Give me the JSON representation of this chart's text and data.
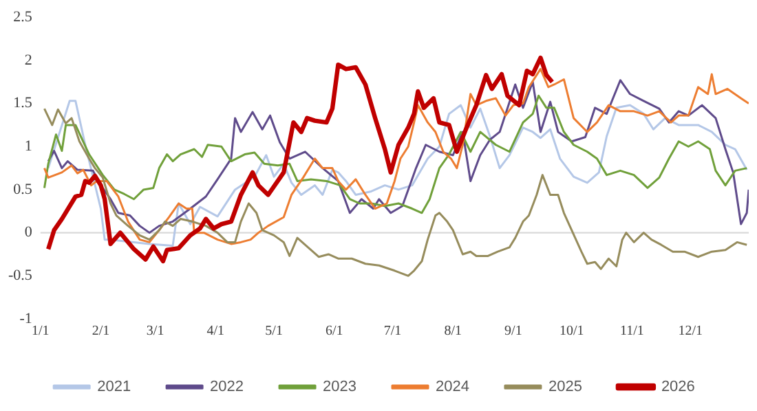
{
  "chart_data": {
    "type": "line",
    "xlim": [
      "--01-01",
      "--12-31"
    ],
    "xticks": [
      {
        "value": "--01-01",
        "label": "1/1"
      },
      {
        "value": "--02-01",
        "label": "2/1"
      },
      {
        "value": "--03-01",
        "label": "3/1"
      },
      {
        "value": "--04-01",
        "label": "4/1"
      },
      {
        "value": "--05-01",
        "label": "5/1"
      },
      {
        "value": "--06-01",
        "label": "6/1"
      },
      {
        "value": "--07-01",
        "label": "7/1"
      },
      {
        "value": "--08-01",
        "label": "8/1"
      },
      {
        "value": "--09-01",
        "label": "9/1"
      },
      {
        "value": "--10-01",
        "label": "10/1"
      },
      {
        "value": "--11-01",
        "label": "11/1"
      },
      {
        "value": "--12-01",
        "label": "12/1"
      }
    ],
    "ylim": [
      -1,
      2.5
    ],
    "yticks": [
      -1,
      -0.5,
      0,
      0.5,
      1,
      1.5,
      2,
      2.5
    ],
    "grid": false,
    "legend": "bottom",
    "marker": "none",
    "line_style": "solid",
    "ref_lines": [
      {
        "axis": "y",
        "value": 0,
        "color": "#d9d9d9"
      }
    ],
    "series": [
      {
        "name": "2021",
        "color": "#b4c7e7",
        "x": [
          "--01-05",
          "--01-16",
          "--01-19",
          "--01-24",
          "--02-01",
          "--02-03",
          "--02-06",
          "--02-26",
          "--03-10",
          "--03-13",
          "--03-19",
          "--03-24",
          "--04-02",
          "--04-11",
          "--04-21",
          "--04-27",
          "--05-01",
          "--05-06",
          "--05-10",
          "--05-15",
          "--05-22",
          "--05-26",
          "--05-31",
          "--06-03",
          "--06-07",
          "--06-12",
          "--06-20",
          "--06-27",
          "--07-04",
          "--07-11",
          "--07-19",
          "--07-25",
          "--07-30",
          "--08-05",
          "--08-10",
          "--08-15",
          "--08-20",
          "--08-25",
          "--08-30",
          "--09-06",
          "--09-11",
          "--09-15",
          "--09-20",
          "--09-25",
          "--10-02",
          "--10-09",
          "--10-15",
          "--10-19",
          "--10-24",
          "--10-31",
          "--11-07",
          "--11-12",
          "--11-18",
          "--11-25",
          "--12-05",
          "--12-12",
          "--12-19",
          "--12-24",
          "--12-30"
        ],
        "values": [
          0.75,
          1.53,
          1.53,
          1.02,
          0.28,
          -0.08,
          -0.08,
          -0.13,
          -0.15,
          0.34,
          0.1,
          0.3,
          0.19,
          0.5,
          0.65,
          0.9,
          0.65,
          0.8,
          0.58,
          0.44,
          0.55,
          0.44,
          0.73,
          0.7,
          0.6,
          0.44,
          0.48,
          0.55,
          0.5,
          0.55,
          0.86,
          1.0,
          1.38,
          1.48,
          1.22,
          1.44,
          1.12,
          0.75,
          0.9,
          1.22,
          1.17,
          1.1,
          1.2,
          0.86,
          0.65,
          0.58,
          0.7,
          1.12,
          1.45,
          1.48,
          1.38,
          1.2,
          1.33,
          1.25,
          1.25,
          1.17,
          1.02,
          0.97,
          0.73
        ]
      },
      {
        "name": "2022",
        "color": "#5f4b8b",
        "x": [
          "--01-05",
          "--01-08",
          "--01-12",
          "--01-15",
          "--01-20",
          "--01-28",
          "--02-01",
          "--02-06",
          "--02-10",
          "--02-16",
          "--02-21",
          "--02-26",
          "--03-03",
          "--03-10",
          "--03-19",
          "--03-27",
          "--04-02",
          "--04-09",
          "--04-11",
          "--04-14",
          "--04-20",
          "--04-25",
          "--04-29",
          "--05-04",
          "--05-09",
          "--05-17",
          "--05-26",
          "--06-03",
          "--06-09",
          "--06-15",
          "--06-21",
          "--06-24",
          "--06-30",
          "--07-06",
          "--07-13",
          "--07-18",
          "--07-25",
          "--08-01",
          "--08-06",
          "--08-10",
          "--08-15",
          "--08-20",
          "--08-25",
          "--09-02",
          "--09-06",
          "--09-11",
          "--09-15",
          "--09-20",
          "--09-24",
          "--10-01",
          "--10-08",
          "--10-13",
          "--10-19",
          "--10-26",
          "--10-31",
          "--11-07",
          "--11-15",
          "--11-20",
          "--11-25",
          "--11-30",
          "--12-07",
          "--12-14",
          "--12-19",
          "--12-23",
          "--12-27",
          "--12-30",
          "--12-31"
        ],
        "values": [
          0.83,
          0.95,
          0.75,
          0.83,
          0.73,
          0.72,
          0.55,
          0.39,
          0.23,
          0.2,
          0.08,
          0.0,
          0.08,
          0.13,
          0.28,
          0.42,
          0.62,
          0.86,
          1.33,
          1.17,
          1.4,
          1.2,
          1.36,
          1.05,
          0.86,
          0.94,
          0.75,
          0.6,
          0.23,
          0.39,
          0.28,
          0.39,
          0.23,
          0.31,
          0.75,
          1.02,
          0.94,
          0.9,
          1.17,
          0.6,
          0.9,
          1.08,
          1.17,
          1.72,
          1.45,
          1.75,
          1.17,
          1.52,
          1.17,
          1.06,
          1.11,
          1.45,
          1.38,
          1.77,
          1.61,
          1.53,
          1.44,
          1.28,
          1.41,
          1.36,
          1.48,
          1.33,
          0.97,
          0.7,
          0.1,
          0.23,
          0.5
        ]
      },
      {
        "name": "2023",
        "color": "#70a03a",
        "x": [
          "--01-03",
          "--01-05",
          "--01-09",
          "--01-12",
          "--01-14",
          "--01-19",
          "--01-26",
          "--02-02",
          "--02-08",
          "--02-13",
          "--02-18",
          "--02-23",
          "--02-28",
          "--03-03",
          "--03-07",
          "--03-10",
          "--03-14",
          "--03-21",
          "--03-25",
          "--03-28",
          "--04-04",
          "--04-09",
          "--04-16",
          "--04-21",
          "--04-26",
          "--05-03",
          "--05-09",
          "--05-13",
          "--05-20",
          "--05-28",
          "--06-04",
          "--06-09",
          "--06-14",
          "--06-20",
          "--06-27",
          "--07-04",
          "--07-11",
          "--07-16",
          "--07-20",
          "--07-25",
          "--07-30",
          "--08-05",
          "--08-10",
          "--08-15",
          "--08-23",
          "--08-30",
          "--09-06",
          "--09-11",
          "--09-14",
          "--09-18",
          "--09-22",
          "--09-27",
          "--10-02",
          "--10-09",
          "--10-14",
          "--10-19",
          "--10-26",
          "--11-02",
          "--11-09",
          "--11-15",
          "--11-20",
          "--11-25",
          "--11-30",
          "--12-05",
          "--12-11",
          "--12-14",
          "--12-19",
          "--12-24",
          "--12-30"
        ],
        "values": [
          0.52,
          0.8,
          1.14,
          0.95,
          1.25,
          1.25,
          0.91,
          0.67,
          0.5,
          0.45,
          0.39,
          0.5,
          0.52,
          0.75,
          0.91,
          0.83,
          0.91,
          0.97,
          0.88,
          1.02,
          1.0,
          0.83,
          0.91,
          0.93,
          0.8,
          0.78,
          0.8,
          0.6,
          0.62,
          0.6,
          0.55,
          0.39,
          0.34,
          0.34,
          0.31,
          0.34,
          0.28,
          0.23,
          0.39,
          0.75,
          0.91,
          1.17,
          0.94,
          1.17,
          1.02,
          0.94,
          1.28,
          1.38,
          1.59,
          1.45,
          1.45,
          1.17,
          1.02,
          0.94,
          0.86,
          0.67,
          0.72,
          0.67,
          0.52,
          0.64,
          0.86,
          1.06,
          1.0,
          1.06,
          0.97,
          0.72,
          0.55,
          0.72,
          0.75
        ]
      },
      {
        "name": "2024",
        "color": "#ed7d31",
        "x": [
          "--01-03",
          "--01-05",
          "--01-12",
          "--01-17",
          "--01-20",
          "--01-23",
          "--01-27",
          "--01-30",
          "--02-04",
          "--02-10",
          "--02-15",
          "--02-21",
          "--02-26",
          "--03-03",
          "--03-08",
          "--03-13",
          "--03-17",
          "--03-20",
          "--03-21",
          "--03-26",
          "--04-02",
          "--04-09",
          "--04-14",
          "--04-19",
          "--04-23",
          "--04-28",
          "--05-06",
          "--05-10",
          "--05-16",
          "--05-22",
          "--05-26",
          "--05-31",
          "--06-03",
          "--06-07",
          "--06-12",
          "--06-17",
          "--06-22",
          "--06-28",
          "--07-02",
          "--07-05",
          "--07-09",
          "--07-12",
          "--07-14",
          "--07-19",
          "--07-23",
          "--07-27",
          "--07-31",
          "--08-03",
          "--08-06",
          "--08-10",
          "--08-13",
          "--08-18",
          "--08-23",
          "--08-28",
          "--09-01",
          "--09-06",
          "--09-09",
          "--09-15",
          "--09-19",
          "--09-22",
          "--09-27",
          "--10-02",
          "--10-09",
          "--10-14",
          "--10-20",
          "--10-26",
          "--11-02",
          "--11-09",
          "--11-15",
          "--11-21",
          "--11-25",
          "--11-30",
          "--12-05",
          "--12-10",
          "--12-12",
          "--12-14",
          "--12-20",
          "--12-27",
          "--12-31"
        ],
        "values": [
          0.75,
          0.64,
          0.7,
          0.78,
          0.69,
          0.73,
          0.55,
          0.6,
          0.6,
          0.42,
          0.13,
          -0.08,
          -0.11,
          0.03,
          0.18,
          0.34,
          0.28,
          0.28,
          0.0,
          0.0,
          -0.08,
          -0.13,
          -0.11,
          -0.08,
          0.0,
          0.08,
          0.18,
          0.44,
          0.64,
          0.86,
          0.75,
          0.75,
          0.6,
          0.5,
          0.62,
          0.44,
          0.28,
          0.34,
          0.6,
          0.86,
          1.0,
          1.28,
          1.48,
          1.28,
          1.17,
          0.94,
          0.86,
          0.75,
          1.02,
          1.61,
          1.48,
          1.53,
          1.56,
          1.36,
          1.48,
          1.5,
          1.69,
          1.9,
          1.69,
          1.72,
          1.78,
          1.33,
          1.17,
          1.28,
          1.48,
          1.41,
          1.41,
          1.36,
          1.41,
          1.28,
          1.36,
          1.36,
          1.69,
          1.61,
          1.84,
          1.61,
          1.67,
          1.56,
          1.5
        ]
      },
      {
        "name": "2025",
        "color": "#968c5c",
        "x": [
          "--01-03",
          "--01-07",
          "--01-10",
          "--01-14",
          "--01-17",
          "--01-21",
          "--01-26",
          "--01-29",
          "--02-02",
          "--02-06",
          "--02-09",
          "--02-15",
          "--02-21",
          "--02-26",
          "--03-03",
          "--03-06",
          "--03-10",
          "--03-14",
          "--03-20",
          "--03-27",
          "--04-02",
          "--04-07",
          "--04-11",
          "--04-14",
          "--04-18",
          "--04-22",
          "--04-25",
          "--05-01",
          "--05-06",
          "--05-09",
          "--05-13",
          "--05-18",
          "--05-24",
          "--05-29",
          "--06-03",
          "--06-10",
          "--06-17",
          "--06-24",
          "--07-02",
          "--07-09",
          "--07-12",
          "--07-16",
          "--07-19",
          "--07-23",
          "--07-25",
          "--07-29",
          "--08-01",
          "--08-06",
          "--08-10",
          "--08-13",
          "--08-19",
          "--08-24",
          "--08-30",
          "--09-02",
          "--09-06",
          "--09-09",
          "--09-13",
          "--09-16",
          "--09-20",
          "--09-24",
          "--09-27",
          "--10-01",
          "--10-06",
          "--10-09",
          "--10-13",
          "--10-16",
          "--10-20",
          "--10-24",
          "--10-27",
          "--10-29",
          "--11-02",
          "--11-07",
          "--11-11",
          "--11-16",
          "--11-22",
          "--11-28",
          "--12-05",
          "--12-12",
          "--12-19",
          "--12-25",
          "--12-30"
        ],
        "values": [
          1.44,
          1.25,
          1.43,
          1.27,
          1.33,
          1.06,
          0.86,
          0.75,
          0.64,
          0.34,
          0.2,
          0.08,
          -0.03,
          -0.08,
          0.03,
          0.13,
          0.08,
          0.16,
          0.13,
          0.08,
          0.0,
          -0.11,
          -0.11,
          0.13,
          0.34,
          0.23,
          0.03,
          -0.03,
          -0.11,
          -0.27,
          -0.06,
          -0.16,
          -0.28,
          -0.25,
          -0.3,
          -0.3,
          -0.36,
          -0.38,
          -0.44,
          -0.5,
          -0.44,
          -0.33,
          -0.08,
          0.2,
          0.23,
          0.13,
          0.03,
          -0.25,
          -0.22,
          -0.27,
          -0.27,
          -0.22,
          -0.17,
          -0.06,
          0.13,
          0.2,
          0.44,
          0.67,
          0.44,
          0.44,
          0.23,
          0.03,
          -0.22,
          -0.36,
          -0.34,
          -0.42,
          -0.3,
          -0.39,
          -0.08,
          0.0,
          -0.11,
          0.0,
          -0.08,
          -0.14,
          -0.22,
          -0.22,
          -0.28,
          -0.22,
          -0.2,
          -0.11,
          -0.14
        ]
      },
      {
        "name": "2026",
        "color": "#c00000",
        "x": [
          "--01-05",
          "--01-08",
          "--01-12",
          "--01-19",
          "--01-22",
          "--01-24",
          "--01-26",
          "--01-29",
          "--02-01",
          "--02-03",
          "--02-06",
          "--02-11",
          "--02-18",
          "--02-24",
          "--02-28",
          "--03-05",
          "--03-07",
          "--03-13",
          "--03-19",
          "--03-24",
          "--03-27",
          "--03-31",
          "--04-04",
          "--04-09",
          "--04-14",
          "--04-20",
          "--04-23",
          "--04-28",
          "--05-06",
          "--05-11",
          "--05-15",
          "--05-18",
          "--05-22",
          "--05-28",
          "--05-31",
          "--06-03",
          "--06-07",
          "--06-12",
          "--06-17",
          "--06-22",
          "--06-27",
          "--06-30",
          "--07-04",
          "--07-09",
          "--07-12",
          "--07-14",
          "--07-17",
          "--07-22",
          "--07-25",
          "--07-30",
          "--08-03",
          "--08-08",
          "--08-13",
          "--08-18",
          "--08-21",
          "--08-26",
          "--08-29",
          "--09-04",
          "--09-08",
          "--09-11",
          "--09-15",
          "--09-18",
          "--09-21"
        ],
        "values": [
          -0.19,
          0.03,
          0.16,
          0.42,
          0.44,
          0.6,
          0.58,
          0.66,
          0.55,
          0.39,
          -0.13,
          0.0,
          -0.19,
          -0.31,
          -0.16,
          -0.33,
          -0.2,
          -0.18,
          -0.03,
          0.05,
          0.16,
          0.05,
          0.1,
          0.13,
          0.44,
          0.7,
          0.55,
          0.44,
          0.7,
          1.28,
          1.17,
          1.33,
          1.3,
          1.28,
          1.44,
          1.95,
          1.9,
          1.92,
          1.72,
          1.33,
          0.97,
          0.7,
          1.02,
          1.22,
          1.38,
          1.64,
          1.45,
          1.56,
          1.28,
          1.25,
          0.94,
          1.22,
          1.48,
          1.83,
          1.67,
          1.84,
          1.59,
          1.48,
          1.88,
          1.84,
          2.03,
          1.83,
          1.75
        ]
      }
    ]
  }
}
